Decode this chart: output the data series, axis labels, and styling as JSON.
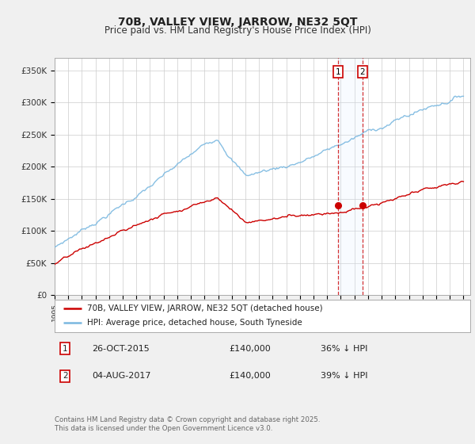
{
  "title": "70B, VALLEY VIEW, JARROW, NE32 5QT",
  "subtitle": "Price paid vs. HM Land Registry's House Price Index (HPI)",
  "hpi_color": "#7ab8e0",
  "price_color": "#cc0000",
  "shaded_color": "#ddeeff",
  "dashed_color": "#cc0000",
  "ylabel_ticks": [
    "£0",
    "£50K",
    "£100K",
    "£150K",
    "£200K",
    "£250K",
    "£300K",
    "£350K"
  ],
  "ytick_vals": [
    0,
    50000,
    100000,
    150000,
    200000,
    250000,
    300000,
    350000
  ],
  "ylim": [
    0,
    370000
  ],
  "legend_label1": "70B, VALLEY VIEW, JARROW, NE32 5QT (detached house)",
  "legend_label2": "HPI: Average price, detached house, South Tyneside",
  "annotation1_date": "26-OCT-2015",
  "annotation1_price": "£140,000",
  "annotation1_hpi": "36% ↓ HPI",
  "annotation2_date": "04-AUG-2017",
  "annotation2_price": "£140,000",
  "annotation2_hpi": "39% ↓ HPI",
  "sale1_year": 2015.82,
  "sale1_price": 140000,
  "sale2_year": 2017.59,
  "sale2_price": 140000,
  "footnote": "Contains HM Land Registry data © Crown copyright and database right 2025.\nThis data is licensed under the Open Government Licence v3.0.",
  "bg_color": "#f0f0f0",
  "plot_bg_color": "#ffffff",
  "grid_color": "#cccccc"
}
